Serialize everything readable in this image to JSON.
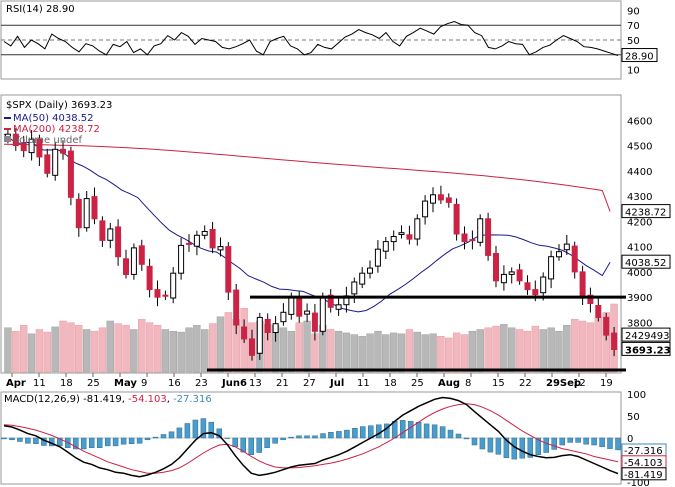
{
  "chart_data": [
    {
      "type": "line",
      "name": "rsi-panel",
      "title": "RSI(14) 28.90",
      "ylim": [
        0,
        100
      ],
      "yticks": [
        10,
        30,
        50,
        70,
        90
      ],
      "levels": [
        30,
        50,
        70
      ],
      "last_value_label": "28.90",
      "values": [
        48,
        42,
        55,
        40,
        50,
        45,
        38,
        58,
        52,
        48,
        40,
        34,
        45,
        42,
        35,
        30,
        44,
        41,
        48,
        33,
        38,
        30,
        42,
        45,
        56,
        50,
        60,
        55,
        44,
        52,
        50,
        48,
        40,
        38,
        41,
        45,
        50,
        35,
        30,
        48,
        52,
        55,
        42,
        38,
        30,
        33,
        44,
        40,
        38,
        46,
        54,
        58,
        64,
        60,
        57,
        52,
        60,
        48,
        42,
        55,
        60,
        66,
        62,
        58,
        68,
        72,
        75,
        71,
        70,
        60,
        56,
        40,
        38,
        42,
        48,
        45,
        44,
        30,
        34,
        40,
        43,
        50,
        56,
        52,
        48,
        41,
        40,
        38,
        35,
        32,
        29
      ]
    },
    {
      "type": "candlestick",
      "name": "price-panel",
      "title": "$SPX (Daily) 3693.23",
      "legend": [
        {
          "label": "MA(50) 4038.52",
          "color": "#1a1a8c"
        },
        {
          "label": "MA(200) 4238.72",
          "color": "#cc2244"
        },
        {
          "label": "Volume undef",
          "color": "#888888"
        }
      ],
      "ylim": [
        3600,
        4700
      ],
      "yticks": [
        3800,
        3900,
        4000,
        4100,
        4200,
        4300,
        4400,
        4500,
        4600
      ],
      "price_tags": [
        {
          "label": "4238.72",
          "value": 4238.72
        },
        {
          "label": "4038.52",
          "value": 4038.52
        },
        {
          "label": "2429493",
          "value": 3750
        },
        {
          "label": "3693.23",
          "value": 3693.23
        }
      ],
      "x_labels": [
        "Apr",
        "11",
        "18",
        "25",
        "May",
        "9",
        "16",
        "23",
        "Jun6",
        "13",
        "21",
        "27",
        "Jul",
        "11",
        "18",
        "25",
        "Aug",
        "8",
        "15",
        "22",
        "29Sep",
        "12",
        "19"
      ],
      "closes": [
        4545,
        4500,
        4480,
        4525,
        4455,
        4390,
        4485,
        4470,
        4295,
        4175,
        4290,
        4210,
        4125,
        4170,
        4060,
        3990,
        4095,
        4030,
        3930,
        3900,
        3905,
        3995,
        4105,
        4110,
        4145,
        4160,
        4095,
        4100,
        3920,
        3790,
        3735,
        3670,
        3820,
        3760,
        3795,
        3840,
        3900,
        3825,
        3845,
        3765,
        3900,
        3860,
        3870,
        3905,
        3960,
        3995,
        4015,
        4090,
        4120,
        4140,
        4155,
        4130,
        4210,
        4280,
        4305,
        4285,
        4275,
        4150,
        4120,
        4125,
        4210,
        4065,
        3965,
        3990,
        4000,
        3965,
        3930,
        3910,
        3980,
        4060,
        4080,
        4110,
        4000,
        3900,
        3875,
        3820,
        3750,
        3693
      ]
    },
    {
      "type": "bar",
      "name": "volume",
      "values": [
        52,
        48,
        55,
        45,
        50,
        47,
        53,
        60,
        58,
        55,
        50,
        48,
        52,
        60,
        57,
        55,
        50,
        62,
        58,
        55,
        50,
        48,
        47,
        52,
        55,
        50,
        57,
        65,
        70,
        62,
        75,
        58,
        60,
        56,
        55,
        52,
        48,
        58,
        60,
        45,
        55,
        50,
        48,
        46,
        44,
        42,
        45,
        48,
        44,
        46,
        45,
        50,
        47,
        44,
        45,
        42,
        40,
        46,
        44,
        48,
        50,
        52,
        54,
        56,
        52,
        50,
        48,
        54,
        50,
        52,
        48,
        55,
        62,
        60,
        58,
        64,
        70,
        80
      ]
    },
    {
      "type": "line",
      "name": "macd-panel",
      "title": "MACD(12,26,9) -81.419, -54.103, -27.316",
      "legend": [
        {
          "label": "MACD(12,26,9)",
          "color": "#000000"
        },
        {
          "label": "-81.419",
          "color": "#000000"
        },
        {
          "label": "-54.103",
          "color": "#cc2244"
        },
        {
          "label": "-27.316",
          "color": "#3d8ab8"
        }
      ],
      "ylim": [
        -100,
        100
      ],
      "yticks": [
        -100,
        -50,
        0,
        50,
        100
      ],
      "tag_labels": [
        "-27.316",
        "-54.103",
        "-81.419"
      ],
      "macd": [
        28,
        25,
        18,
        10,
        5,
        -5,
        -12,
        -20,
        -32,
        -45,
        -55,
        -60,
        -68,
        -72,
        -78,
        -80,
        -85,
        -88,
        -84,
        -78,
        -70,
        -60,
        -45,
        -25,
        -5,
        10,
        12,
        5,
        -15,
        -40,
        -62,
        -80,
        -85,
        -82,
        -78,
        -72,
        -66,
        -62,
        -60,
        -58,
        -50,
        -44,
        -38,
        -30,
        -20,
        -10,
        0,
        10,
        22,
        38,
        52,
        62,
        72,
        80,
        88,
        92,
        90,
        85,
        76,
        60,
        45,
        30,
        15,
        -5,
        -20,
        -30,
        -38,
        -42,
        -45,
        -44,
        -40,
        -38,
        -42,
        -50,
        -58,
        -66,
        -74,
        -81
      ],
      "signal": [
        30,
        29,
        26,
        22,
        18,
        12,
        6,
        -2,
        -10,
        -20,
        -30,
        -38,
        -46,
        -54,
        -60,
        -66,
        -72,
        -76,
        -80,
        -80,
        -78,
        -74,
        -68,
        -58,
        -46,
        -34,
        -24,
        -16,
        -14,
        -20,
        -30,
        -42,
        -52,
        -60,
        -66,
        -68,
        -68,
        -67,
        -65,
        -63,
        -60,
        -57,
        -53,
        -48,
        -42,
        -36,
        -28,
        -20,
        -10,
        0,
        12,
        24,
        36,
        48,
        58,
        66,
        72,
        76,
        78,
        76,
        70,
        62,
        52,
        40,
        28,
        16,
        6,
        -4,
        -12,
        -18,
        -24,
        -28,
        -32,
        -36,
        -42,
        -46,
        -50,
        -54
      ]
    }
  ]
}
